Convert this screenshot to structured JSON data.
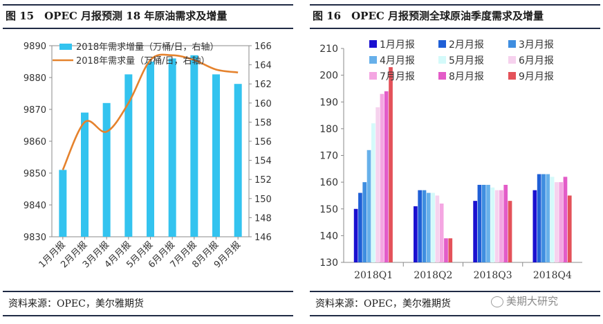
{
  "left_title": "图 15　OPEC 月报预测 18 年原油需求及增量",
  "right_title": "图 16　OPEC 月报预测全球原油季度需求及增量",
  "left_source": "资料来源：OPEC，美尔雅期货",
  "right_source": "资料来源：OPEC，美尔雅期货",
  "watermark": "美期大研究",
  "colors": {
    "bar": "#33c3ef",
    "line": "#e5822d",
    "rule": "#1f2a44"
  },
  "chart_data": [
    {
      "type": "bar+line",
      "categories": [
        "1月月报",
        "2月月报",
        "3月月报",
        "4月月报",
        "5月月报",
        "6月月报",
        "7月月报",
        "8月月报",
        "9月月报"
      ],
      "series": [
        {
          "name": "2018年需求增量（万桶/日，右轴）",
          "type": "bar",
          "axis": "left",
          "values": [
            9851,
            9869,
            9872,
            9881,
            9885,
            9886,
            9887,
            9881,
            9878
          ]
        },
        {
          "name": "2018年需求量（万桶/日，右轴）",
          "type": "line",
          "axis": "right",
          "values": [
            153,
            158,
            157,
            160,
            164.5,
            165,
            164.5,
            163.5,
            163.2
          ]
        }
      ],
      "y_left": {
        "min": 9830,
        "max": 9890,
        "ticks": [
          9830,
          9840,
          9850,
          9860,
          9870,
          9880,
          9890
        ]
      },
      "y_right": {
        "min": 146,
        "max": 166,
        "ticks": [
          146,
          148,
          150,
          152,
          154,
          156,
          158,
          160,
          162,
          164,
          166
        ]
      },
      "legend_position": "top",
      "grid": false
    },
    {
      "type": "bar",
      "categories": [
        "2018Q1",
        "2018Q2",
        "2018Q3",
        "2018Q4"
      ],
      "series": [
        {
          "name": "1月月报",
          "color": "#1a10d0",
          "values": [
            150,
            151,
            153,
            157
          ]
        },
        {
          "name": "2月月报",
          "color": "#1f5fd6",
          "values": [
            156,
            157,
            159,
            163
          ]
        },
        {
          "name": "3月月报",
          "color": "#3f8ee0",
          "values": [
            160,
            157,
            159,
            163
          ]
        },
        {
          "name": "4月月报",
          "color": "#67b0ea",
          "values": [
            172,
            156,
            159,
            163
          ]
        },
        {
          "name": "5月月报",
          "color": "#d4fafa",
          "values": [
            182,
            156,
            158,
            162
          ]
        },
        {
          "name": "6月月报",
          "color": "#f6d2ee",
          "values": [
            188,
            155,
            157,
            160
          ]
        },
        {
          "name": "7月月报",
          "color": "#f4a6e2",
          "values": [
            193,
            152,
            157,
            160
          ]
        },
        {
          "name": "8月月报",
          "color": "#e35cc8",
          "values": [
            194,
            139,
            159,
            162
          ]
        },
        {
          "name": "9月月报",
          "color": "#e4525a",
          "values": [
            203,
            139,
            153,
            155
          ]
        }
      ],
      "y": {
        "min": 130,
        "max": 210,
        "ticks": [
          130,
          140,
          150,
          160,
          170,
          180,
          190,
          200,
          210
        ]
      },
      "legend_position": "top",
      "grid": false
    }
  ]
}
